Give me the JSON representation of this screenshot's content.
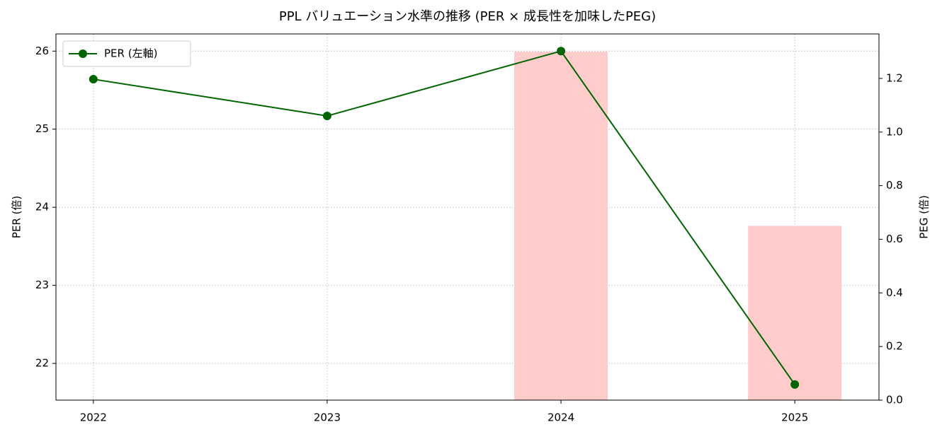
{
  "chart_data": {
    "type": "line-bar",
    "title": "PPL バリュエーション水準の推移 (PER × 成長性を加味したPEG)",
    "x": [
      2022,
      2023,
      2024,
      2025
    ],
    "xlim": [
      2021.84,
      2025.36
    ],
    "xticks": [
      2022,
      2023,
      2024,
      2025
    ],
    "ylabel": "PER (倍)",
    "y2label": "PEG (倍)",
    "ylim": [
      21.53,
      26.22
    ],
    "yticks": [
      22,
      23,
      24,
      25,
      26
    ],
    "y2lim": [
      0,
      1.366
    ],
    "y2ticks": [
      {
        "value": 0,
        "label": "0.0"
      },
      0.2,
      0.4,
      0.6,
      0.8,
      {
        "value": 1,
        "label": "1.0"
      },
      1.2
    ],
    "grid": true,
    "legend": "upper left",
    "series": [
      {
        "name": "PER (左軸)",
        "color": "#006400",
        "type": "line",
        "values": [
          25.64,
          25.17,
          26.0,
          21.73
        ]
      },
      {
        "color": "#ffcccc",
        "type": "bar",
        "axis": "y2",
        "values": [
          null,
          null,
          1.3,
          0.65
        ]
      }
    ]
  }
}
